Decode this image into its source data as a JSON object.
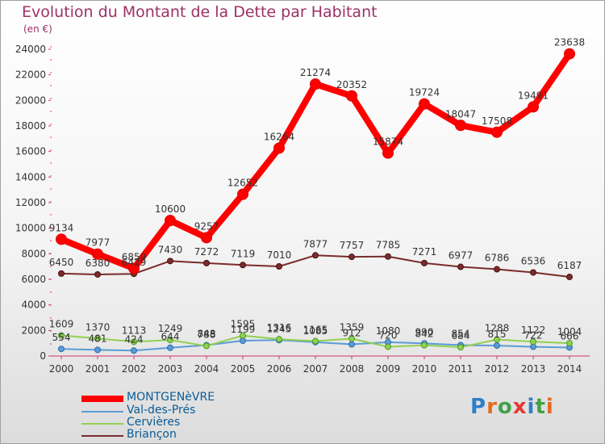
{
  "title": "Evolution du Montant de la Dette par Habitant",
  "unit_label": "(en €)",
  "logo": {
    "text": "Proxiti",
    "letter_colors": [
      "#2e7ec9",
      "#e56a1f",
      "#43a047",
      "#e53935",
      "#2e7ec9",
      "#43a047",
      "#e56a1f"
    ]
  },
  "chart_data": {
    "type": "line",
    "x": [
      "2000",
      "2001",
      "2002",
      "2003",
      "2004",
      "2005",
      "2006",
      "2007",
      "2008",
      "2009",
      "2010",
      "2011",
      "2012",
      "2013",
      "2014"
    ],
    "ylim": [
      0,
      24000
    ],
    "yticks": [
      0,
      2000,
      4000,
      6000,
      8000,
      10000,
      12000,
      14000,
      16000,
      18000,
      20000,
      22000,
      24000
    ],
    "grid": false,
    "legend_position": "bottom-left",
    "series": [
      {
        "name": "MONTGENèVRE",
        "color": "#ff0000",
        "values": [
          9134,
          7977,
          6859,
          10600,
          9257,
          12652,
          16264,
          21274,
          20352,
          15874,
          19724,
          18047,
          17508,
          19491,
          23638
        ]
      },
      {
        "name": "Val-des-Prés",
        "color": "#5b9bd5",
        "values": [
          554,
          481,
          424,
          644,
          848,
          1199,
          1245,
          1085,
          912,
          1080,
          990,
          854,
          815,
          722,
          666
        ]
      },
      {
        "name": "Cervières",
        "color": "#92d050",
        "values": [
          1609,
          1370,
          1113,
          1249,
          788,
          1595,
          1316,
          1165,
          1359,
          720,
          842,
          684,
          1288,
          1122,
          1004
        ]
      },
      {
        "name": "Briançon",
        "color": "#7b2c2c",
        "values": [
          6450,
          6380,
          6429,
          7430,
          7272,
          7119,
          7010,
          7877,
          7757,
          7785,
          7271,
          6977,
          6786,
          6536,
          6187
        ]
      }
    ]
  }
}
